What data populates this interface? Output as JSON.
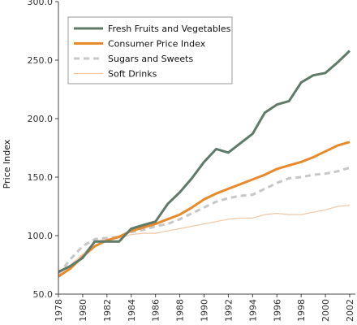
{
  "chart_data": {
    "type": "line",
    "title": "",
    "xlabel": "",
    "ylabel": "Price Index",
    "xlim": [
      1978,
      2002
    ],
    "ylim": [
      50,
      300
    ],
    "x_ticks": [
      1978,
      1980,
      1982,
      1984,
      1986,
      1988,
      1990,
      1992,
      1994,
      1996,
      1998,
      2000,
      2002
    ],
    "y_ticks": [
      "50.0",
      "100.0",
      "150.0",
      "200.0",
      "250.0",
      "300.0"
    ],
    "grid": false,
    "legend_position": "top-left",
    "x": [
      1978,
      1979,
      1980,
      1981,
      1982,
      1983,
      1984,
      1985,
      1986,
      1987,
      1988,
      1989,
      1990,
      1991,
      1992,
      1993,
      1994,
      1995,
      1996,
      1997,
      1998,
      1999,
      2000,
      2001,
      2002
    ],
    "series": [
      {
        "name": "Fresh Fruits and Vegetables",
        "color": "#5f7a68",
        "width": 3,
        "dash": "",
        "values": [
          69,
          74,
          81,
          95,
          95,
          95,
          106,
          109,
          112,
          127,
          137,
          149,
          163,
          174,
          171,
          179,
          187,
          205,
          212,
          215,
          231,
          237,
          239,
          248,
          258
        ]
      },
      {
        "name": "Consumer Price Index",
        "color": "#e98a2a",
        "width": 3,
        "dash": "",
        "values": [
          65,
          72,
          82,
          91,
          96,
          99,
          104,
          107,
          110,
          114,
          118,
          124,
          131,
          136,
          140,
          144,
          148,
          152,
          157,
          160,
          163,
          167,
          172,
          177,
          180
        ]
      },
      {
        "name": "Sugars and Sweets",
        "color": "#c7c7c7",
        "width": 3,
        "dash": "7 5",
        "values": [
          67,
          80,
          91,
          97,
          98,
          99,
          103,
          105,
          108,
          110,
          114,
          119,
          124,
          129,
          132,
          134,
          135,
          140,
          145,
          149,
          150,
          152,
          153,
          155,
          158
        ]
      },
      {
        "name": "Soft Drinks",
        "color": "#f2c7a5",
        "width": 1.2,
        "dash": "",
        "values": [
          67,
          75,
          84,
          95,
          97,
          98,
          101,
          102,
          102,
          104,
          106,
          108,
          110,
          112,
          114,
          115,
          115,
          118,
          119,
          118,
          118,
          120,
          122,
          125,
          126
        ]
      }
    ]
  }
}
